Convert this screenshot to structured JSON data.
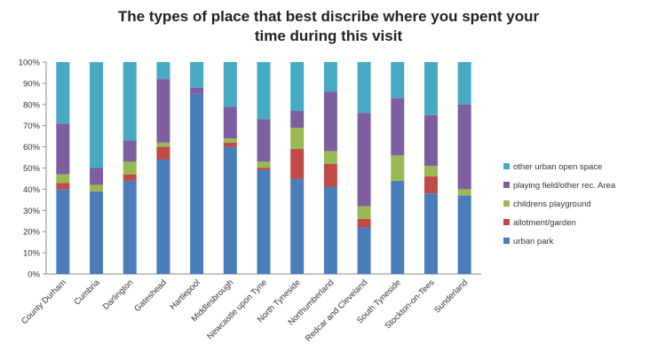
{
  "chart_data": {
    "type": "bar",
    "stacked": true,
    "percent": true,
    "title_lines": [
      "The types of place that best discribe where you spent your",
      "time during this visit"
    ],
    "categories": [
      "County Durham",
      "Cumbria",
      "Darlington",
      "Gateshead",
      "Hartlepool",
      "Middlesbrough",
      "Newcastle upon Tyne",
      "North Tyneside",
      "Northumberland",
      "Redcar and Cleveland",
      "South Tyneside",
      "Stockton-on-Tees",
      "Sunderland"
    ],
    "y_ticks": [
      "0%",
      "10%",
      "20%",
      "30%",
      "40%",
      "50%",
      "60%",
      "70%",
      "80%",
      "90%",
      "100%"
    ],
    "ylim": [
      0,
      100
    ],
    "legend_position": "right",
    "series": [
      {
        "name": "urban park",
        "color": "#4a7ebb",
        "values": [
          40,
          39,
          44,
          54,
          85,
          60,
          49,
          45,
          41,
          22,
          44,
          38,
          37
        ]
      },
      {
        "name": "allotment/garden",
        "color": "#be4b48",
        "values": [
          3,
          0,
          3,
          6,
          0,
          2,
          1,
          14,
          11,
          4,
          0,
          8,
          0
        ]
      },
      {
        "name": "childrens playground",
        "color": "#98b954",
        "values": [
          4,
          3,
          6,
          2,
          0,
          2,
          3,
          10,
          6,
          6,
          12,
          5,
          3
        ]
      },
      {
        "name": "playing field/other rec. Area",
        "color": "#7d5fa0",
        "values": [
          24,
          8,
          10,
          30,
          3,
          15,
          20,
          8,
          28,
          44,
          27,
          24,
          40
        ]
      },
      {
        "name": "other urban open space",
        "color": "#46aac5",
        "values": [
          29,
          50,
          37,
          8,
          12,
          21,
          27,
          23,
          14,
          24,
          17,
          25,
          20
        ]
      }
    ]
  }
}
